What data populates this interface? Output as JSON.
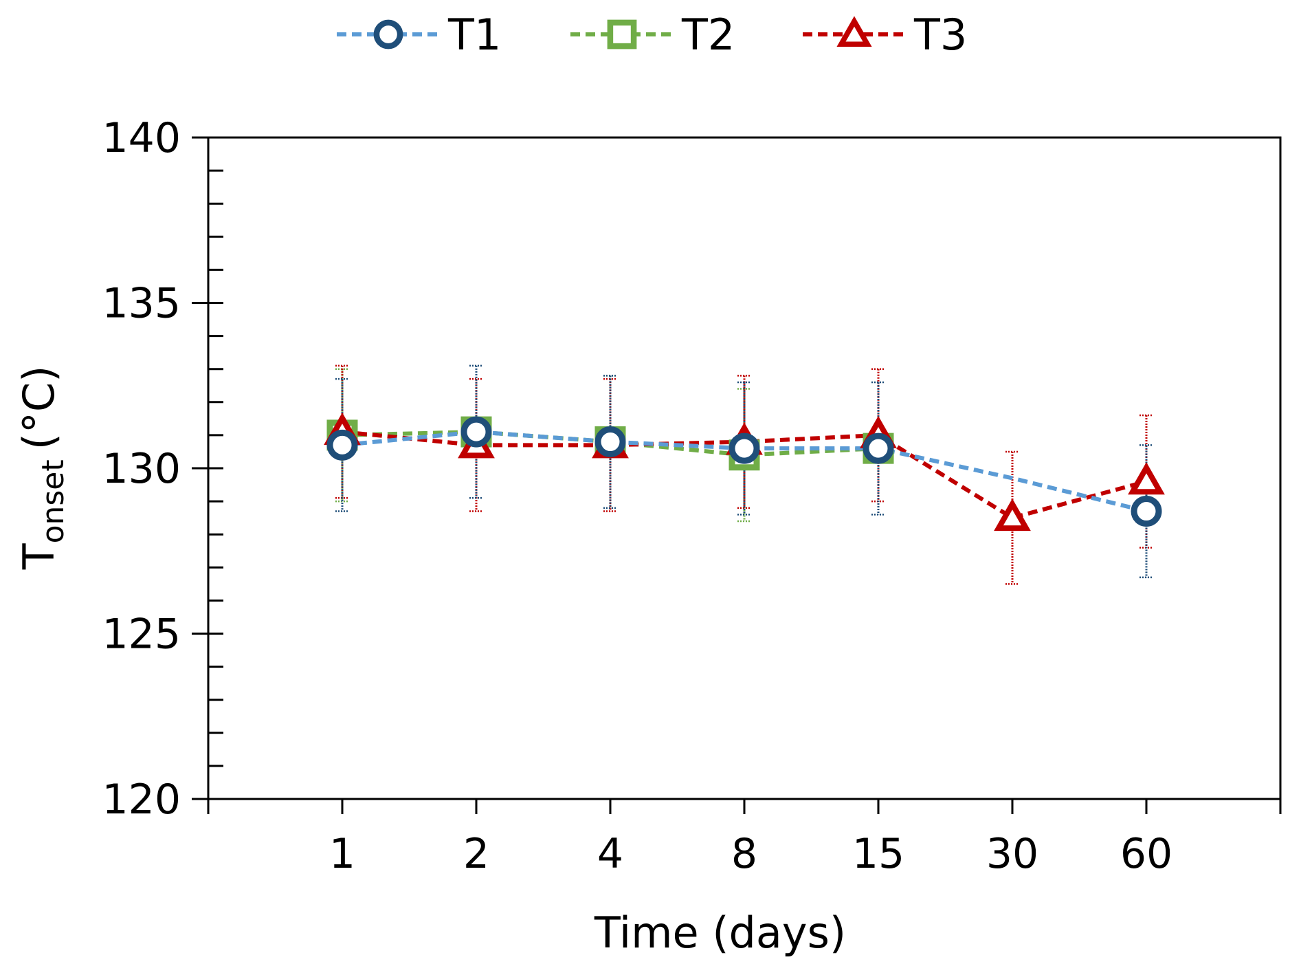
{
  "chart_data": {
    "type": "line",
    "title": "",
    "xlabel": "Time (days)",
    "ylabel": "T",
    "ylabel_subscript": "onset",
    "ylabel_unit": "(°C)",
    "categories": [
      "1",
      "2",
      "4",
      "8",
      "15",
      "30",
      "60"
    ],
    "ylim": [
      120,
      140
    ],
    "y_major_ticks": [
      120,
      125,
      130,
      135,
      140
    ],
    "y_minor_step": 1,
    "grid": false,
    "legend_position": "top-center",
    "series": [
      {
        "name": "T1",
        "marker": "circle",
        "color": "#1f4e79",
        "line_color": "#5b9bd5",
        "values": [
          130.7,
          131.1,
          130.8,
          130.6,
          130.6,
          null,
          128.7
        ],
        "line_values": [
          130.7,
          131.1,
          130.8,
          130.6,
          130.6,
          129.7,
          128.7
        ],
        "error": [
          2.0,
          2.0,
          2.0,
          2.0,
          2.0,
          2.0,
          2.0
        ]
      },
      {
        "name": "T2",
        "marker": "square",
        "color": "#70ad47",
        "line_color": "#70ad47",
        "values": [
          131.0,
          131.1,
          130.8,
          130.4,
          130.6,
          null,
          null
        ],
        "error": [
          2.0,
          0,
          2.0,
          2.0,
          0,
          0,
          0
        ]
      },
      {
        "name": "T3",
        "marker": "triangle",
        "color": "#c00000",
        "line_color": "#c00000",
        "values": [
          131.1,
          130.7,
          130.7,
          130.8,
          131.0,
          128.5,
          129.6
        ],
        "error": [
          2.0,
          2.0,
          2.0,
          2.0,
          2.0,
          2.0,
          2.0
        ]
      }
    ]
  }
}
